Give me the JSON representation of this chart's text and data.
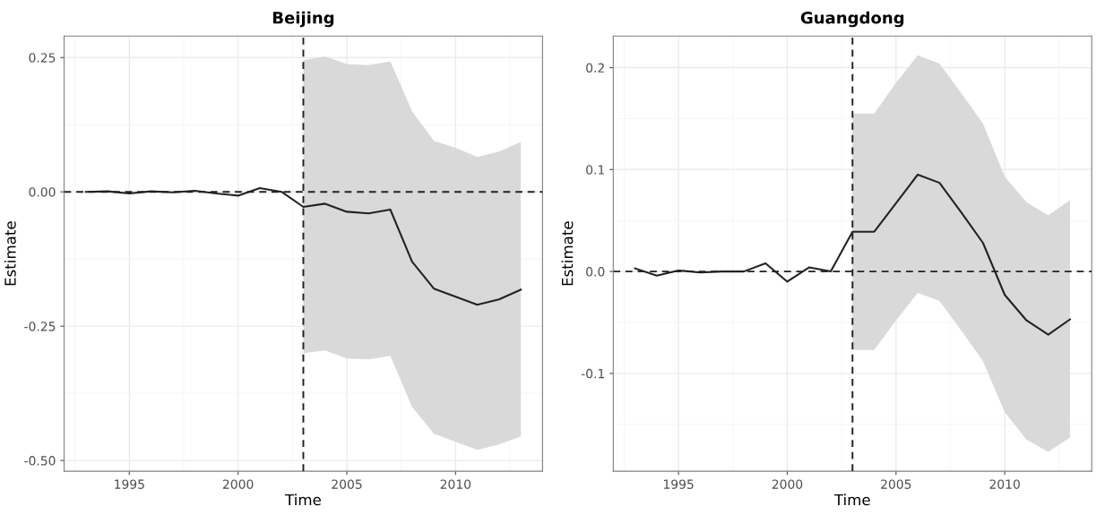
{
  "chart_data": [
    {
      "type": "line",
      "title": "Beijing",
      "xlabel": "Time",
      "ylabel": "Estimate",
      "x": [
        1993,
        1994,
        1995,
        1996,
        1997,
        1998,
        1999,
        2000,
        2001,
        2002,
        2003,
        2004,
        2005,
        2006,
        2007,
        2008,
        2009,
        2010,
        2011,
        2012,
        2013
      ],
      "series": [
        {
          "color": "#222222",
          "values": [
            0,
            0.001,
            -0.003,
            0.001,
            -0.001,
            0.002,
            -0.003,
            -0.007,
            0.007,
            0.0,
            -0.028,
            -0.022,
            -0.037,
            -0.04,
            -0.033,
            -0.13,
            -0.18,
            -0.195,
            -0.21,
            -0.2,
            -0.182
          ],
          "lower": [
            null,
            null,
            null,
            null,
            null,
            null,
            null,
            null,
            null,
            null,
            -0.3,
            -0.295,
            -0.31,
            -0.312,
            -0.305,
            -0.4,
            -0.45,
            -0.465,
            -0.48,
            -0.47,
            -0.455
          ],
          "upper": [
            null,
            null,
            null,
            null,
            null,
            null,
            null,
            null,
            null,
            null,
            0.245,
            0.252,
            0.238,
            0.236,
            0.243,
            0.15,
            0.095,
            0.082,
            0.065,
            0.075,
            0.093
          ]
        }
      ],
      "xlim": [
        1992,
        2014
      ],
      "xticks": [
        1995,
        2000,
        2005,
        2010
      ],
      "ylim": [
        -0.52,
        0.29
      ],
      "yticks": [
        {
          "value": 0.25,
          "label": "0.25"
        },
        {
          "value": 0,
          "label": "0.00"
        },
        {
          "value": -0.25,
          "label": "-0.25"
        },
        {
          "value": -0.5,
          "label": "-0.50"
        }
      ],
      "ref_lines": [
        {
          "axis": "y",
          "value": 0,
          "line_style": "dashed"
        },
        {
          "axis": "x",
          "value": 2003,
          "line_style": "dashed"
        }
      ],
      "grid": true,
      "legend": false
    },
    {
      "type": "line",
      "title": "Guangdong",
      "xlabel": "Time",
      "ylabel": "Estimate",
      "x": [
        1993,
        1994,
        1995,
        1996,
        1997,
        1998,
        1999,
        2000,
        2001,
        2002,
        2003,
        2004,
        2005,
        2006,
        2007,
        2008,
        2009,
        2010,
        2011,
        2012,
        2013
      ],
      "series": [
        {
          "color": "#222222",
          "values": [
            0.003,
            -0.004,
            0.001,
            -0.001,
            0.0,
            0.0,
            0.008,
            -0.01,
            0.004,
            0.0,
            0.039,
            0.039,
            0.067,
            0.095,
            0.087,
            0.058,
            0.028,
            -0.023,
            -0.048,
            -0.062,
            -0.047
          ],
          "lower": [
            null,
            null,
            null,
            null,
            null,
            null,
            null,
            null,
            null,
            null,
            -0.077,
            -0.077,
            -0.048,
            -0.021,
            -0.029,
            -0.058,
            -0.088,
            -0.138,
            -0.165,
            -0.177,
            -0.163
          ],
          "upper": [
            null,
            null,
            null,
            null,
            null,
            null,
            null,
            null,
            null,
            null,
            0.155,
            0.155,
            0.185,
            0.212,
            0.204,
            0.175,
            0.145,
            0.093,
            0.068,
            0.055,
            0.07
          ]
        }
      ],
      "xlim": [
        1992,
        2014
      ],
      "xticks": [
        1995,
        2000,
        2005,
        2010
      ],
      "ylim": [
        -0.196,
        0.231
      ],
      "yticks": [
        {
          "value": 0.2,
          "label": "0.2"
        },
        {
          "value": 0.1,
          "label": "0.1"
        },
        {
          "value": 0,
          "label": "0.0"
        },
        {
          "value": -0.1,
          "label": "-0.1"
        }
      ],
      "ref_lines": [
        {
          "axis": "y",
          "value": 0,
          "line_style": "dashed"
        },
        {
          "axis": "x",
          "value": 2003,
          "line_style": "dashed"
        }
      ],
      "grid": true,
      "legend": false
    }
  ]
}
